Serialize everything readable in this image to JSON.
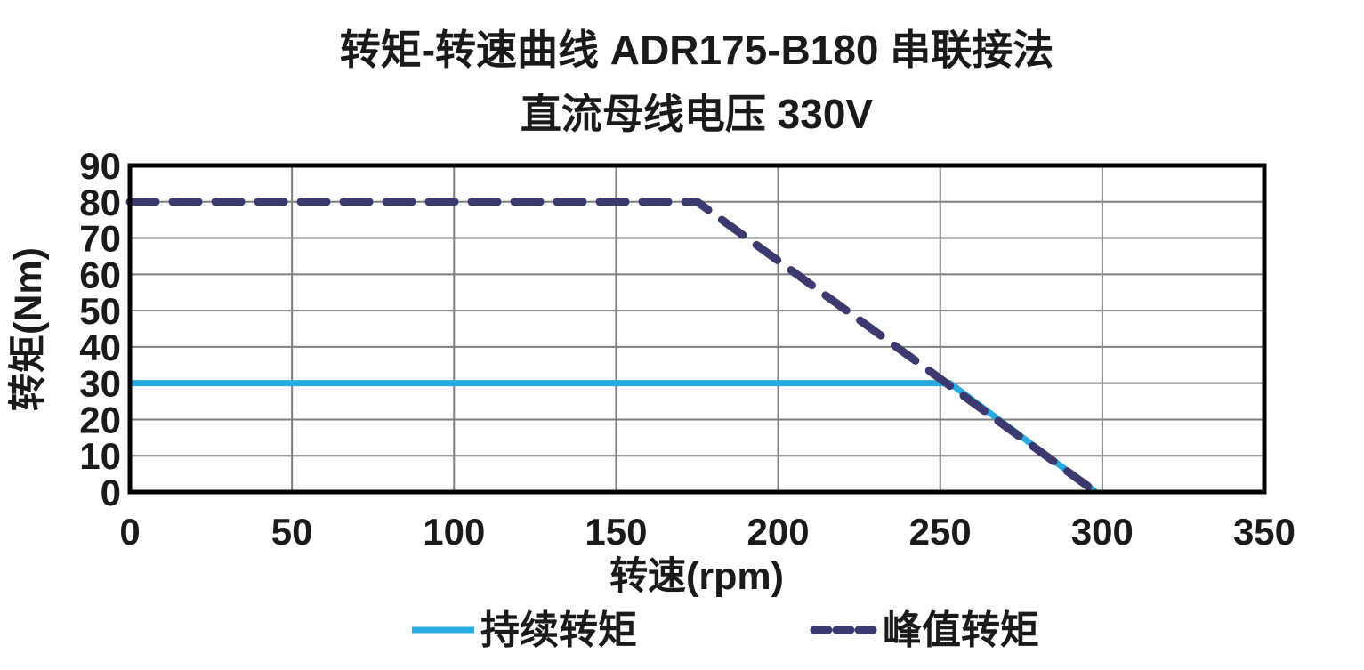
{
  "chart_data": {
    "type": "line",
    "title_line1": "转矩-转速曲线 ADR175-B180 串联接法",
    "title_line2": "直流母线电压 330V",
    "xlabel": "转速(rpm)",
    "ylabel": "转矩(Nm)",
    "xlim": [
      0,
      350
    ],
    "ylim": [
      0,
      90
    ],
    "x_ticks": [
      0,
      50,
      100,
      150,
      200,
      250,
      300,
      350
    ],
    "y_ticks": [
      0,
      10,
      20,
      30,
      40,
      50,
      60,
      70,
      80,
      90
    ],
    "grid": "on",
    "legend_position": "bottom",
    "series": [
      {
        "name": "持续转矩",
        "style": "solid",
        "color": "#29ABE2",
        "points": [
          [
            0,
            30
          ],
          [
            253,
            30
          ],
          [
            298,
            0
          ]
        ]
      },
      {
        "name": "峰值转矩",
        "style": "dashed",
        "color": "#3B3A6E",
        "points": [
          [
            0,
            80
          ],
          [
            175,
            80
          ],
          [
            298,
            0
          ]
        ]
      }
    ]
  },
  "colors": {
    "background": "#FFFFFF",
    "plot_border": "#000000",
    "gridline": "#7F7F7F",
    "text": "#1A1A1A",
    "continuous_torque": "#29ABE2",
    "peak_torque": "#3B3A6E"
  }
}
